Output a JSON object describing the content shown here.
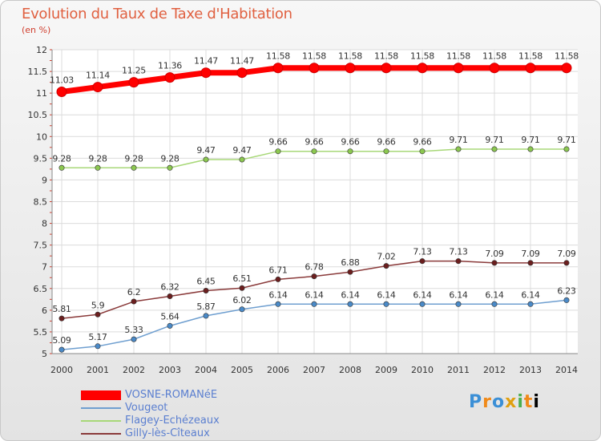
{
  "chart_data": {
    "type": "line",
    "title": "Evolution du Taux de Taxe d'Habitation",
    "subtitle": "(en %)",
    "x": [
      "2000",
      "2001",
      "2002",
      "2003",
      "2004",
      "2005",
      "2006",
      "2007",
      "2008",
      "2009",
      "2010",
      "2011",
      "2012",
      "2013",
      "2014"
    ],
    "ylim": [
      5,
      12
    ],
    "yticks": [
      "5",
      "5.5",
      "6",
      "6.5",
      "7",
      "7.5",
      "8",
      "8.5",
      "9",
      "9.5",
      "10",
      "10.5",
      "11",
      "11.5",
      "12"
    ],
    "grid": true,
    "legend_position": "bottom-left",
    "series": [
      {
        "name": "VOSNE-ROMANéE",
        "color": "#ff0000",
        "marker": "#ff0000",
        "values": [
          11.03,
          11.14,
          11.25,
          11.36,
          11.47,
          11.47,
          11.58,
          11.58,
          11.58,
          11.58,
          11.58,
          11.58,
          11.58,
          11.58,
          11.58
        ],
        "labels": [
          "11.03",
          "11.14",
          "11.25",
          "11.36",
          "11.47",
          "11.47",
          "11.58",
          "11.58",
          "11.58",
          "11.58",
          "11.58",
          "11.58",
          "11.58",
          "11.58",
          "11.58"
        ]
      },
      {
        "name": "Vougeot",
        "color": "#6f9fd0",
        "marker": "#4a8ac8",
        "values": [
          5.09,
          5.17,
          5.33,
          5.64,
          5.87,
          6.02,
          6.14,
          6.14,
          6.14,
          6.14,
          6.14,
          6.14,
          6.14,
          6.14,
          6.23
        ],
        "labels": [
          "5.09",
          "5.17",
          "5.33",
          "5.64",
          "5.87",
          "6.02",
          "6.14",
          "6.14",
          "6.14",
          "6.14",
          "6.14",
          "6.14",
          "6.14",
          "6.14",
          "6.23"
        ]
      },
      {
        "name": "Flagey-Echézeaux",
        "color": "#a8d878",
        "marker": "#8cc850",
        "values": [
          9.28,
          9.28,
          9.28,
          9.28,
          9.47,
          9.47,
          9.66,
          9.66,
          9.66,
          9.66,
          9.66,
          9.71,
          9.71,
          9.71,
          9.71
        ],
        "labels": [
          "9.28",
          "9.28",
          "9.28",
          "9.28",
          "9.47",
          "9.47",
          "9.66",
          "9.66",
          "9.66",
          "9.66",
          "9.66",
          "9.71",
          "9.71",
          "9.71",
          "9.71"
        ]
      },
      {
        "name": "Gilly-lès-Cîteaux",
        "color": "#8a3a3a",
        "marker": "#6b1e1e",
        "values": [
          5.81,
          5.9,
          6.2,
          6.32,
          6.45,
          6.51,
          6.71,
          6.78,
          6.88,
          7.02,
          7.13,
          7.13,
          7.09,
          7.09,
          7.09
        ],
        "labels": [
          "5.81",
          "5.9",
          "6.2",
          "6.32",
          "6.45",
          "6.51",
          "6.71",
          "6.78",
          "6.88",
          "7.02",
          "7.13",
          "7.13",
          "7.09",
          "7.09",
          "7.09"
        ]
      }
    ]
  },
  "logo": {
    "letters": [
      "P",
      "r",
      "o",
      "x",
      "i",
      "t",
      "i"
    ]
  }
}
